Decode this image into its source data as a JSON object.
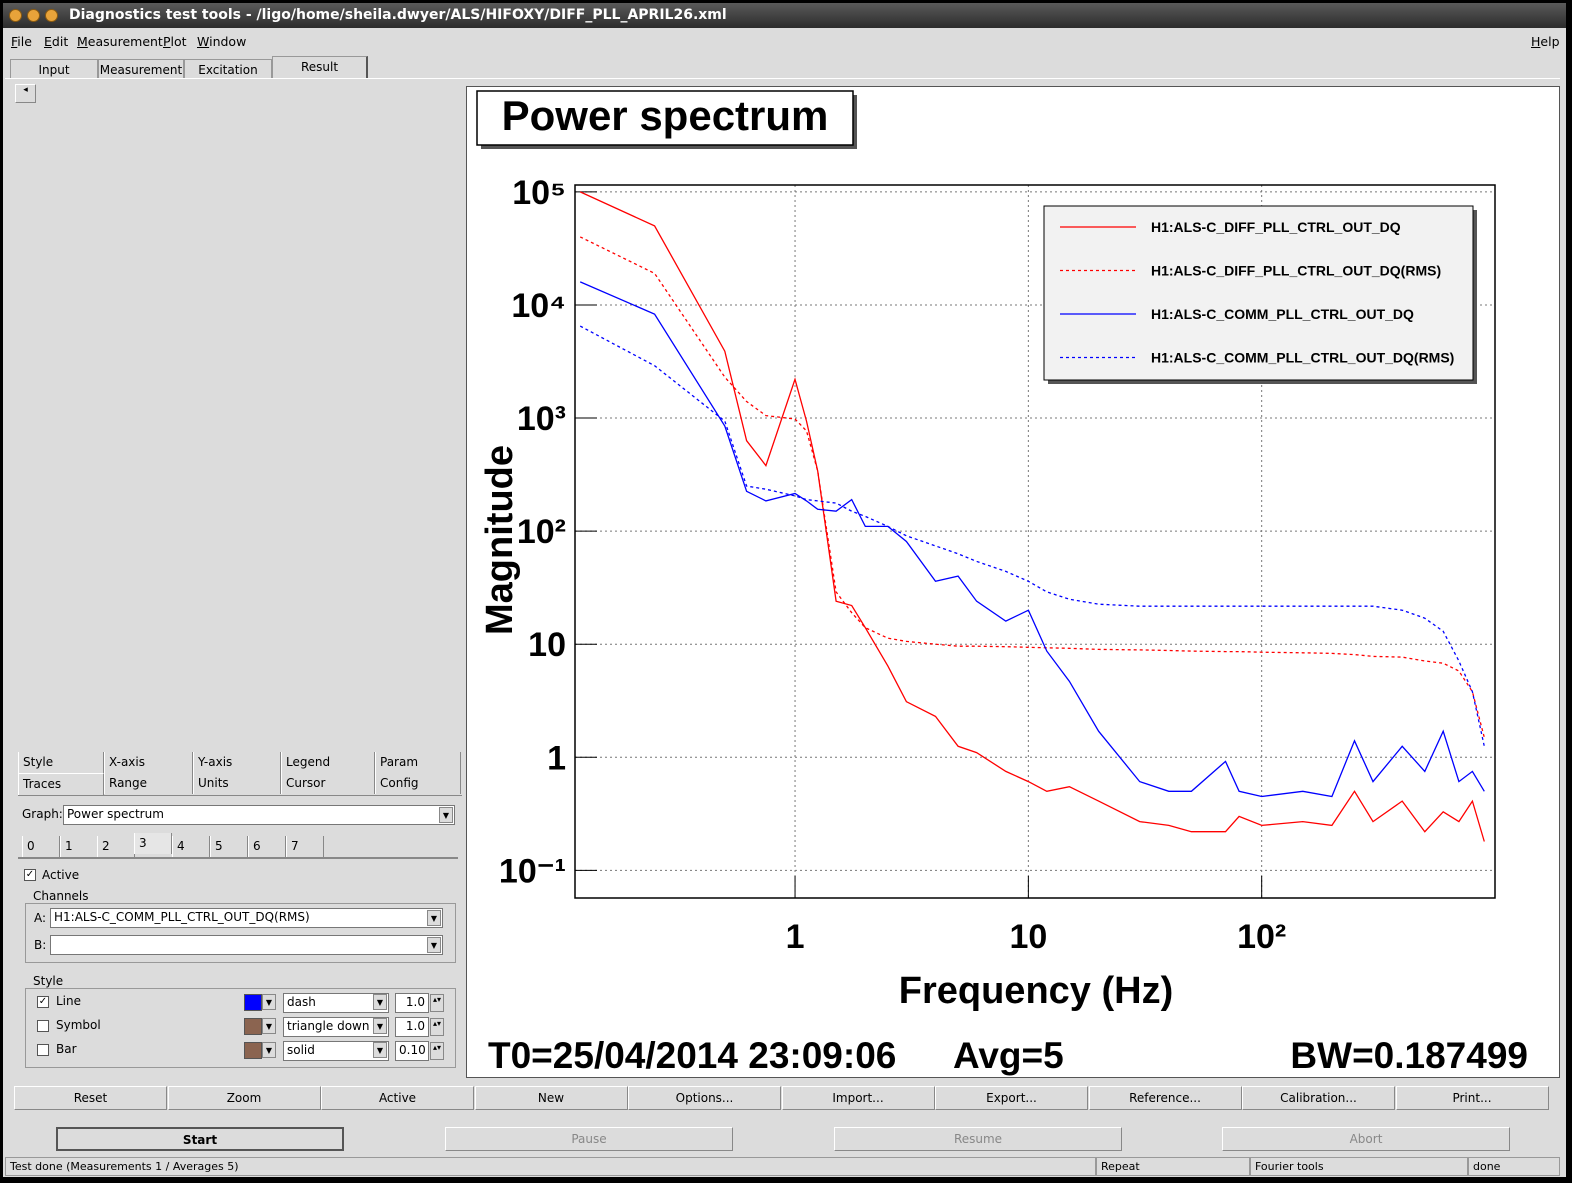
{
  "window": {
    "title": "Diagnostics test tools - /ligo/home/sheila.dwyer/ALS/HIFOXY/DIFF_PLL_APRIL26.xml"
  },
  "menu": {
    "items": [
      "File",
      "Edit",
      "Measurement",
      "Plot",
      "Window"
    ],
    "help": "Help"
  },
  "tabs": [
    "Input",
    "Measurement",
    "Excitation",
    "Result"
  ],
  "options": {
    "tabs_row1": [
      "Style",
      "X-axis",
      "Y-axis",
      "Legend",
      "Param"
    ],
    "tabs_row2": [
      "Traces",
      "Range",
      "Units",
      "Cursor",
      "Config"
    ],
    "graph_label": "Graph:",
    "graph": "Power spectrum",
    "trace_tabs": [
      "0",
      "1",
      "2",
      "3",
      "4",
      "5",
      "6",
      "7"
    ],
    "active": "Active",
    "channels": {
      "title": "Channels",
      "a_label": "A:",
      "a": "H1:ALS-C_COMM_PLL_CTRL_OUT_DQ(RMS)",
      "b_label": "B:"
    },
    "style": {
      "title": "Style",
      "rows": [
        {
          "label": "Line",
          "type": "dash",
          "width": "1.0"
        },
        {
          "label": "Symbol",
          "type": "triangle down",
          "width": "1.0"
        },
        {
          "label": "Bar",
          "type": "solid",
          "width": "0.10"
        }
      ]
    }
  },
  "chart_data": {
    "type": "line",
    "title": "Power spectrum",
    "x_label": "Frequency (Hz)",
    "y_label": "Magnitude",
    "x_log": true,
    "y_log": true,
    "grid": true,
    "legend_loc": "upper right",
    "xlim": [
      0.114,
      1000
    ],
    "ylim": [
      0.057,
      115000
    ],
    "xticks": [
      1,
      10,
      {
        "value": 100,
        "label": "10²"
      }
    ],
    "yticks": [
      {
        "value": 100000,
        "label": "10⁵"
      },
      {
        "value": 10000,
        "label": "10⁴"
      },
      {
        "value": 1000,
        "label": "10³"
      },
      {
        "value": 100,
        "label": "10²"
      },
      10,
      1,
      {
        "value": 0.1,
        "label": "10⁻¹"
      }
    ],
    "x": [
      0.12,
      0.25,
      0.5,
      0.62,
      0.75,
      1.0,
      1.12,
      1.25,
      1.5,
      1.75,
      2,
      2.5,
      3,
      4,
      5,
      6,
      8,
      10,
      12,
      15,
      20,
      30,
      40,
      50,
      70,
      80,
      100,
      150,
      200,
      250,
      300,
      400,
      500,
      600,
      700,
      800,
      900
    ],
    "series": [
      {
        "name": "H1:ALS-C_DIFF_PLL_CTRL_OUT_DQ",
        "color": "#ff0000",
        "linestyle": "solid",
        "values": [
          100000,
          50000,
          3900,
          630,
          380,
          2200,
          940,
          340,
          24,
          22,
          14,
          6.4,
          3.1,
          2.3,
          1.25,
          1.1,
          0.75,
          0.61,
          0.5,
          0.55,
          0.41,
          0.27,
          0.25,
          0.22,
          0.22,
          0.3,
          0.25,
          0.27,
          0.25,
          0.5,
          0.27,
          0.41,
          0.22,
          0.33,
          0.27,
          0.41,
          0.18
        ]
      },
      {
        "name": "H1:ALS-C_DIFF_PLL_CTRL_OUT_DQ(RMS)",
        "color": "#ff0000",
        "linestyle": "dashed",
        "values": [
          40000,
          19000,
          2300,
          1400,
          1050,
          980,
          770,
          340,
          29,
          19,
          14,
          11.3,
          10.6,
          10,
          9.6,
          9.6,
          9.5,
          9.4,
          9.3,
          9.2,
          9.0,
          8.9,
          8.8,
          8.7,
          8.6,
          8.6,
          8.5,
          8.4,
          8.3,
          8.1,
          7.8,
          7.7,
          7.1,
          6.8,
          5.8,
          3.8,
          1.5
        ]
      },
      {
        "name": "H1:ALS-C_COMM_PLL_CTRL_OUT_DQ",
        "color": "#0000ff",
        "linestyle": "solid",
        "values": [
          16000,
          8300,
          850,
          225,
          185,
          215,
          185,
          156,
          150,
          190,
          110,
          110,
          81,
          36,
          40,
          24,
          16,
          20,
          8.7,
          4.7,
          1.7,
          0.61,
          0.5,
          0.5,
          0.92,
          0.5,
          0.45,
          0.5,
          0.45,
          1.4,
          0.61,
          1.25,
          0.75,
          1.7,
          0.61,
          0.75,
          0.5
        ]
      },
      {
        "name": "H1:ALS-C_COMM_PLL_CTRL_OUT_DQ(RMS)",
        "color": "#0000ff",
        "linestyle": "dashed",
        "values": [
          6500,
          2900,
          940,
          250,
          235,
          205,
          190,
          185,
          177,
          150,
          135,
          110,
          91,
          74,
          63,
          54,
          44,
          36,
          29,
          25,
          22.6,
          21.7,
          21.7,
          21.7,
          21.7,
          21.7,
          21.7,
          21.7,
          21.7,
          21.7,
          21.7,
          20,
          17,
          13,
          7.1,
          3.8,
          1.25
        ]
      }
    ],
    "annotations": [
      "T0=25/04/2014 23:09:06",
      "Avg=5",
      "BW=0.187499"
    ]
  },
  "buttons": [
    "Reset",
    "Zoom",
    "Active",
    "New",
    "Options...",
    "Import...",
    "Export...",
    "Reference...",
    "Calibration...",
    "Print..."
  ],
  "run_buttons": [
    "Start",
    "Pause",
    "Resume",
    "Abort"
  ],
  "status": [
    "Test done (Measurements 1 / Averages 5)",
    "Repeat",
    "Fourier tools",
    "done"
  ]
}
